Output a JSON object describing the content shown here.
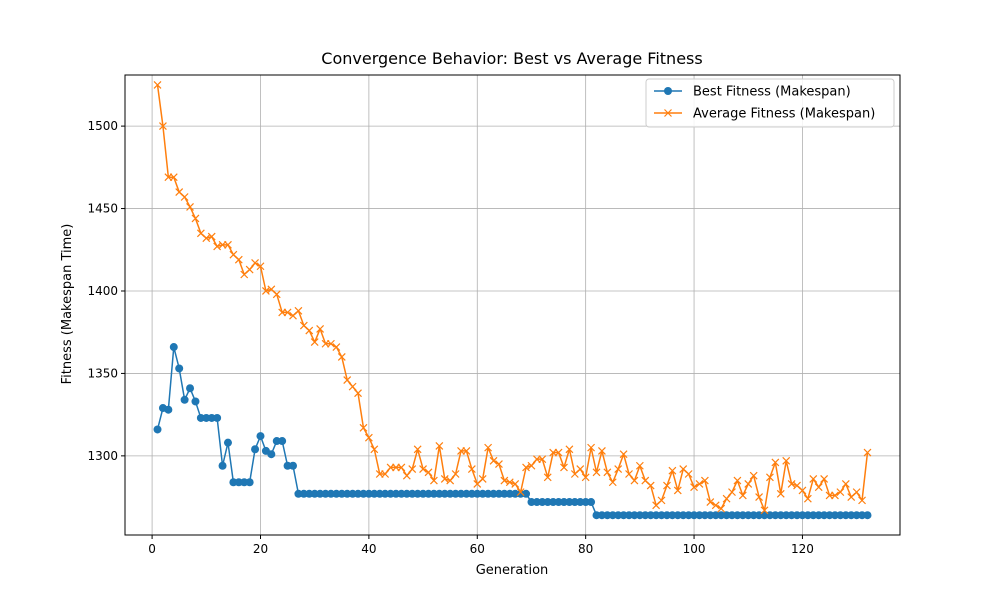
{
  "chart_data": {
    "type": "line",
    "title": "Convergence Behavior: Best vs Average Fitness",
    "xlabel": "Generation",
    "ylabel": "Fitness (Makespan Time)",
    "xlim": [
      -5,
      138
    ],
    "ylim": [
      1252,
      1531
    ],
    "xticks": [
      0,
      20,
      40,
      60,
      80,
      100,
      120
    ],
    "yticks": [
      1300,
      1350,
      1400,
      1450,
      1500
    ],
    "grid": true,
    "legend_position": "top-right",
    "series": [
      {
        "name": "Best Fitness (Makespan)",
        "color": "#1f77b4",
        "marker": "circle",
        "start_x": 1,
        "values": [
          1316,
          1329,
          1328,
          1366,
          1353,
          1334,
          1341,
          1333,
          1323,
          1323,
          1323,
          1323,
          1294,
          1308,
          1284,
          1284,
          1284,
          1284,
          1304,
          1312,
          1303,
          1301,
          1309,
          1309,
          1294,
          1294,
          1277,
          1277,
          1277,
          1277,
          1277,
          1277,
          1277,
          1277,
          1277,
          1277,
          1277,
          1277,
          1277,
          1277,
          1277,
          1277,
          1277,
          1277,
          1277,
          1277,
          1277,
          1277,
          1277,
          1277,
          1277,
          1277,
          1277,
          1277,
          1277,
          1277,
          1277,
          1277,
          1277,
          1277,
          1277,
          1277,
          1277,
          1277,
          1277,
          1277,
          1277,
          1277,
          1277,
          1272,
          1272,
          1272,
          1272,
          1272,
          1272,
          1272,
          1272,
          1272,
          1272,
          1272,
          1272,
          1264,
          1264,
          1264,
          1264,
          1264,
          1264,
          1264,
          1264,
          1264,
          1264,
          1264,
          1264,
          1264,
          1264,
          1264,
          1264,
          1264,
          1264,
          1264,
          1264,
          1264,
          1264,
          1264,
          1264,
          1264,
          1264,
          1264,
          1264,
          1264,
          1264,
          1264,
          1264,
          1264,
          1264,
          1264,
          1264,
          1264,
          1264,
          1264,
          1264,
          1264,
          1264,
          1264,
          1264,
          1264,
          1264,
          1264,
          1264,
          1264,
          1264,
          1264
        ]
      },
      {
        "name": "Average Fitness (Makespan)",
        "color": "#ff7f0e",
        "marker": "x",
        "start_x": 1,
        "values": [
          1525,
          1500,
          1469,
          1469,
          1460,
          1457,
          1451,
          1444,
          1435,
          1432,
          1433,
          1427,
          1428,
          1428,
          1422,
          1419,
          1410,
          1413,
          1417,
          1415,
          1400,
          1401,
          1398,
          1387,
          1387,
          1385,
          1388,
          1379,
          1376,
          1369,
          1377,
          1368,
          1368,
          1366,
          1360,
          1346,
          1342,
          1338,
          1317,
          1311,
          1304,
          1289,
          1289,
          1293,
          1293,
          1293,
          1288,
          1292,
          1304,
          1292,
          1290,
          1285,
          1306,
          1286,
          1285,
          1289,
          1303,
          1303,
          1292,
          1283,
          1286,
          1305,
          1297,
          1295,
          1285,
          1284,
          1283,
          1278,
          1293,
          1294,
          1298,
          1298,
          1287,
          1302,
          1302,
          1293,
          1304,
          1289,
          1292,
          1287,
          1305,
          1290,
          1303,
          1290,
          1284,
          1292,
          1301,
          1289,
          1285,
          1294,
          1285,
          1282,
          1270,
          1273,
          1282,
          1291,
          1279,
          1292,
          1289,
          1281,
          1283,
          1285,
          1272,
          1270,
          1268,
          1274,
          1278,
          1285,
          1276,
          1283,
          1288,
          1275,
          1267,
          1287,
          1296,
          1277,
          1297,
          1283,
          1282,
          1279,
          1274,
          1286,
          1281,
          1286,
          1276,
          1276,
          1278,
          1283,
          1275,
          1278,
          1273,
          1302
        ]
      }
    ]
  }
}
